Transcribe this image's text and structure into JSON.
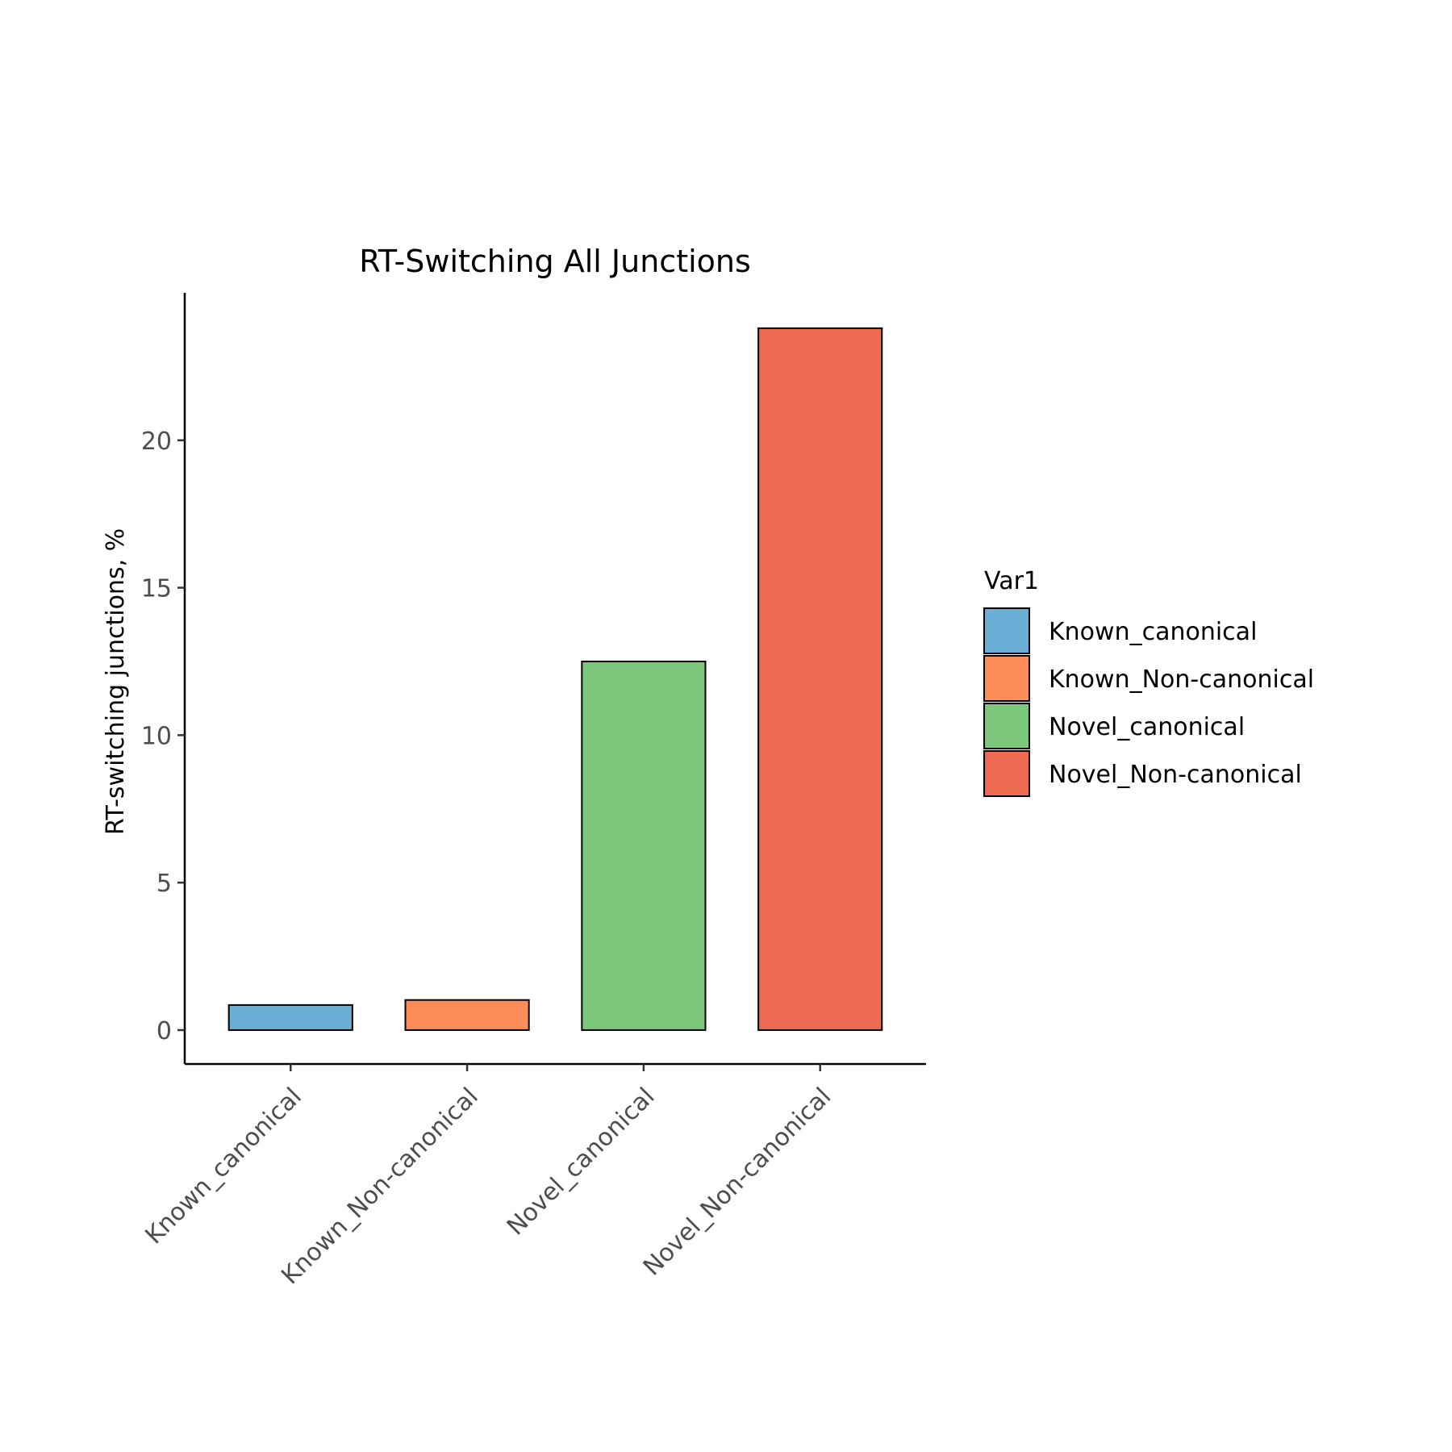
{
  "chart_data": {
    "type": "bar",
    "title": "RT-Switching All Junctions",
    "xlabel": "",
    "ylabel": "RT-switching junctions, %",
    "categories": [
      "Known_canonical",
      "Known_Non-canonical",
      "Novel_canonical",
      "Novel_Non-canonical"
    ],
    "values": [
      0.85,
      1.02,
      12.5,
      23.8
    ],
    "colors": [
      "#6baed6",
      "#fc8d59",
      "#7bc77b",
      "#ee6a50"
    ],
    "ylim": [
      -1.15,
      25
    ],
    "yticks": [
      0,
      5,
      10,
      15,
      20
    ],
    "ytick_labels": [
      "0",
      "5",
      "10",
      "15",
      "20"
    ],
    "grid": false,
    "legend": {
      "title": "Var1",
      "position": "right",
      "entries": [
        "Known_canonical",
        "Known_Non-canonical",
        "Novel_canonical",
        "Novel_Non-canonical"
      ]
    }
  }
}
